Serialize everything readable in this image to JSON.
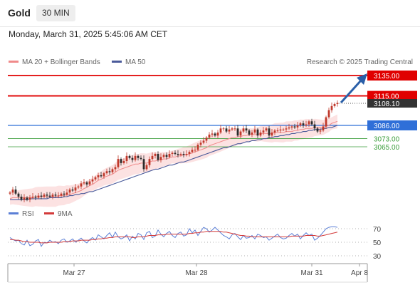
{
  "header": {
    "title": "Gold",
    "timeframe": "30 MIN",
    "datetime": "Monday, March 31, 2025 5:45:06 AM CET"
  },
  "legend": {
    "ma20": "MA 20 + Bollinger Bands",
    "ma50": "MA 50",
    "copyright": "Research © 2025 Trading Central"
  },
  "rsi_legend": {
    "rsi": "RSI",
    "ma": "9MA"
  },
  "colors": {
    "resistance": "#e00000",
    "pivot": "#2f6fd8",
    "support": "#3a9d3a",
    "ma20": "#f08a8a",
    "ma50": "#4a5a9a",
    "bollinger_fill": "#fbd8d8",
    "candle_up": "#c0392b",
    "candle_down": "#2b2b2b",
    "arrow": "#2a5fa8",
    "rsi": "#5b7fd6",
    "rsi_ma": "#d33a3a"
  },
  "chart_data": [
    {
      "type": "candlestick",
      "x_labels": [
        "Mar 27",
        "Mar 28",
        "Mar 31",
        "Apr 8"
      ],
      "ylim": [
        3000,
        3145
      ],
      "current_price": "3108.10",
      "levels": [
        {
          "value": 3135.0,
          "label": "3135.00",
          "kind": "resistance"
        },
        {
          "value": 3115.0,
          "label": "3115.00",
          "kind": "resistance"
        },
        {
          "value": 3086.0,
          "label": "3086.00",
          "kind": "pivot"
        },
        {
          "value": 3073.0,
          "label": "3073.00",
          "kind": "support"
        },
        {
          "value": 3065.0,
          "label": "3065.00",
          "kind": "support"
        }
      ],
      "close": [
        3020,
        3023,
        3019,
        3016,
        3013,
        3015,
        3013,
        3015,
        3016,
        3015,
        3017,
        3016,
        3018,
        3017,
        3016,
        3018,
        3017,
        3017,
        3019,
        3018,
        3020,
        3023,
        3022,
        3025,
        3026,
        3029,
        3030,
        3028,
        3031,
        3033,
        3035,
        3037,
        3036,
        3039,
        3041,
        3040,
        3043,
        3045,
        3053,
        3049,
        3051,
        3056,
        3054,
        3052,
        3056,
        3054,
        3053,
        3043,
        3047,
        3053,
        3056,
        3058,
        3052,
        3055,
        3057,
        3055,
        3058,
        3059,
        3058,
        3057,
        3058,
        3057,
        3058,
        3060,
        3062,
        3062,
        3067,
        3069,
        3071,
        3074,
        3077,
        3078,
        3076,
        3079,
        3083,
        3083,
        3080,
        3082,
        3083,
        3083,
        3076,
        3080,
        3083,
        3081,
        3077,
        3079,
        3082,
        3076,
        3079,
        3081,
        3083,
        3076,
        3079,
        3081,
        3081,
        3082,
        3082,
        3083,
        3084,
        3085,
        3084,
        3086,
        3088,
        3086,
        3087,
        3090,
        3087,
        3083,
        3080,
        3081,
        3085,
        3094,
        3101,
        3105,
        3107,
        3108.1
      ],
      "ma20": [
        3014,
        3015,
        3015,
        3015,
        3015,
        3015,
        3015,
        3015,
        3015,
        3016,
        3016,
        3016,
        3016,
        3016,
        3016,
        3016,
        3016,
        3017,
        3017,
        3017,
        3018,
        3018,
        3019,
        3020,
        3021,
        3022,
        3024,
        3025,
        3027,
        3028,
        3030,
        3032,
        3033,
        3035,
        3036,
        3037,
        3038,
        3040,
        3042,
        3043,
        3044,
        3045,
        3046,
        3047,
        3048,
        3048,
        3049,
        3049,
        3049,
        3050,
        3051,
        3051,
        3052,
        3052,
        3053,
        3053,
        3054,
        3055,
        3055,
        3056,
        3056,
        3057,
        3057,
        3058,
        3059,
        3060,
        3061,
        3062,
        3063,
        3064,
        3066,
        3067,
        3068,
        3069,
        3070,
        3071,
        3072,
        3073,
        3074,
        3074,
        3075,
        3075,
        3076,
        3076,
        3077,
        3077,
        3077,
        3077,
        3078,
        3078,
        3078,
        3078,
        3078,
        3079,
        3079,
        3079,
        3079,
        3080,
        3080,
        3080,
        3081,
        3081,
        3082,
        3082,
        3083,
        3083,
        3083,
        3084,
        3084,
        3084,
        3084,
        3085,
        3086,
        3088,
        3089,
        3090
      ],
      "ma50": [
        3013,
        3013,
        3013,
        3013,
        3013,
        3013,
        3013,
        3014,
        3014,
        3014,
        3014,
        3014,
        3014,
        3014,
        3015,
        3015,
        3015,
        3015,
        3015,
        3016,
        3016,
        3017,
        3017,
        3018,
        3018,
        3019,
        3019,
        3020,
        3021,
        3021,
        3022,
        3023,
        3024,
        3025,
        3026,
        3027,
        3028,
        3029,
        3030,
        3031,
        3032,
        3033,
        3034,
        3035,
        3036,
        3037,
        3038,
        3039,
        3040,
        3041,
        3042,
        3043,
        3043,
        3044,
        3045,
        3046,
        3047,
        3047,
        3048,
        3049,
        3050,
        3050,
        3051,
        3052,
        3053,
        3054,
        3055,
        3056,
        3057,
        3058,
        3059,
        3060,
        3061,
        3062,
        3063,
        3064,
        3064,
        3065,
        3066,
        3067,
        3068,
        3068,
        3069,
        3070,
        3070,
        3071,
        3071,
        3072,
        3072,
        3073,
        3073,
        3074,
        3074,
        3075,
        3075,
        3076,
        3076,
        3077,
        3077,
        3078,
        3078,
        3079,
        3079,
        3080,
        3080,
        3081,
        3081,
        3082,
        3082,
        3082,
        3083,
        3083,
        3084,
        3084,
        3085,
        3086
      ]
    },
    {
      "type": "line",
      "ylim": [
        20,
        80
      ],
      "ticks": [
        70,
        50,
        30
      ],
      "rsi": [
        57,
        54,
        52,
        53,
        48,
        46,
        53,
        45,
        47,
        52,
        54,
        44,
        50,
        49,
        53,
        50,
        51,
        48,
        53,
        55,
        50,
        52,
        55,
        50,
        53,
        56,
        52,
        49,
        54,
        57,
        53,
        61,
        58,
        55,
        60,
        64,
        57,
        65,
        58,
        55,
        57,
        61,
        52,
        59,
        55,
        63,
        61,
        54,
        64,
        66,
        57,
        59,
        68,
        62,
        58,
        63,
        66,
        60,
        57,
        63,
        65,
        59,
        61,
        70,
        64,
        68,
        60,
        66,
        72,
        70,
        65,
        68,
        72,
        68,
        64,
        60,
        58,
        55,
        61,
        63,
        58,
        54,
        60,
        56,
        57,
        60,
        55,
        62,
        60,
        57,
        58,
        53,
        56,
        59,
        62,
        57,
        55,
        56,
        60,
        63,
        59,
        62,
        55,
        60,
        64,
        60,
        62,
        53,
        56,
        60,
        65,
        70,
        72,
        73,
        73,
        72
      ],
      "rsi_ma": [
        54,
        54,
        53,
        53,
        52,
        51,
        51,
        50,
        50,
        50,
        50,
        49,
        49,
        49,
        50,
        50,
        50,
        50,
        50,
        51,
        51,
        51,
        52,
        52,
        52,
        53,
        53,
        53,
        53,
        54,
        54,
        55,
        55,
        56,
        56,
        57,
        57,
        58,
        58,
        58,
        58,
        58,
        58,
        57,
        57,
        58,
        58,
        58,
        59,
        60,
        60,
        60,
        61,
        61,
        61,
        62,
        62,
        62,
        62,
        62,
        62,
        62,
        62,
        63,
        63,
        64,
        64,
        65,
        65,
        66,
        66,
        66,
        66,
        66,
        66,
        65,
        65,
        64,
        63,
        62,
        61,
        60,
        60,
        59,
        59,
        58,
        58,
        58,
        58,
        58,
        58,
        58,
        58,
        58,
        58,
        58,
        58,
        58,
        58,
        59,
        59,
        59,
        59,
        59,
        60,
        60,
        60,
        60,
        59,
        59,
        60,
        61,
        62,
        63,
        64,
        65
      ]
    }
  ]
}
